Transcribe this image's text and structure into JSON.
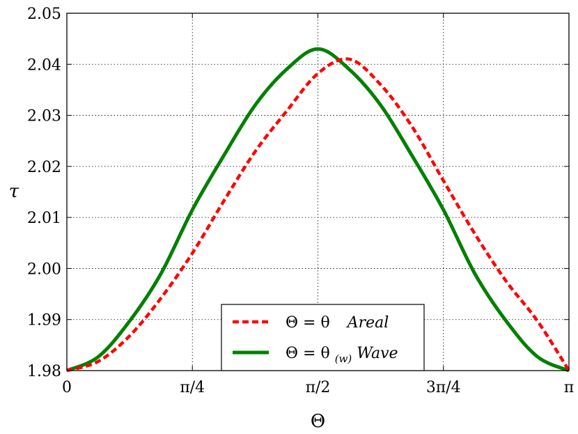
{
  "chart_data": {
    "type": "line",
    "title": "",
    "xlabel": "Θ",
    "ylabel": "τ",
    "xlim": [
      0,
      3.14159265
    ],
    "ylim": [
      1.98,
      2.05
    ],
    "grid": true,
    "legend_position": "bottom-center",
    "x_ticks": [
      {
        "value": 0,
        "label": "0"
      },
      {
        "value": 0.78539816,
        "label": "π/4"
      },
      {
        "value": 1.57079633,
        "label": "π/2"
      },
      {
        "value": 2.35619449,
        "label": "3π/4"
      },
      {
        "value": 3.14159265,
        "label": "π"
      }
    ],
    "y_ticks": [
      {
        "value": 1.98,
        "label": "1.98"
      },
      {
        "value": 1.99,
        "label": "1.99"
      },
      {
        "value": 2.0,
        "label": "2.00"
      },
      {
        "value": 2.01,
        "label": "2.01"
      },
      {
        "value": 2.02,
        "label": "2.02"
      },
      {
        "value": 2.03,
        "label": "2.03"
      },
      {
        "value": 2.04,
        "label": "2.04"
      },
      {
        "value": 2.05,
        "label": "2.05"
      }
    ],
    "series": [
      {
        "name": "Θ = θ    Areal",
        "color": "#ff0000",
        "style": "dashed",
        "x": [
          0,
          0.19635,
          0.3927,
          0.589,
          0.7854,
          0.98175,
          1.1781,
          1.37445,
          1.5708,
          1.76715,
          1.9635,
          2.15985,
          2.3562,
          2.55255,
          2.7489,
          2.94525,
          3.14159
        ],
        "y": [
          1.98,
          1.9818,
          1.9868,
          1.9942,
          2.003,
          2.0132,
          2.0229,
          2.0308,
          2.0382,
          2.041,
          2.036,
          2.0278,
          2.0172,
          2.0068,
          1.9975,
          1.9897,
          1.98
        ]
      },
      {
        "name": "Θ = θ(w)Wave",
        "color": "#008000",
        "style": "solid",
        "x": [
          0,
          0.19635,
          0.3927,
          0.589,
          0.7854,
          0.98175,
          1.1781,
          1.37445,
          1.5708,
          1.76715,
          1.9635,
          2.15985,
          2.3562,
          2.55255,
          2.7489,
          2.94525,
          3.14159
        ],
        "y": [
          1.98,
          1.9827,
          1.9897,
          1.999,
          2.0115,
          2.0221,
          2.032,
          2.039,
          2.043,
          2.039,
          2.032,
          2.0221,
          2.0115,
          1.999,
          1.9897,
          1.9827,
          1.98
        ]
      }
    ],
    "legend": {
      "entries": [
        {
          "prefix": "Θ = θ",
          "suffix": "Areal",
          "color": "#ff0000",
          "style": "dashed"
        },
        {
          "prefix": "Θ = θ",
          "subscript": "(w)",
          "suffix": "Wave",
          "color": "#008000",
          "style": "solid"
        }
      ]
    }
  }
}
